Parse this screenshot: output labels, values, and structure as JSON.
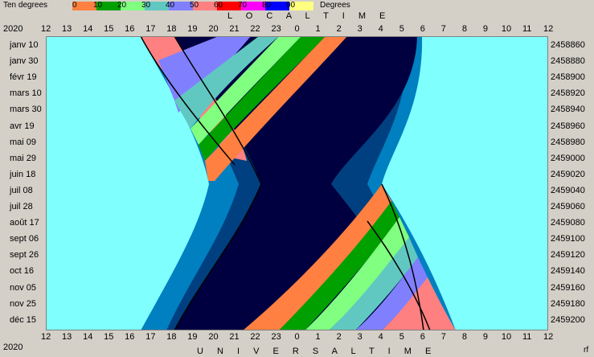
{
  "legend": {
    "left_label": "Ten degrees",
    "right_label": "Degrees",
    "items": [
      {
        "label": "0",
        "color": "#ff8040"
      },
      {
        "label": "10",
        "color": "#00a000"
      },
      {
        "label": "20",
        "color": "#80ff80"
      },
      {
        "label": "30",
        "color": "#60c8c0"
      },
      {
        "label": "40",
        "color": "#8080ff"
      },
      {
        "label": "50",
        "color": "#ff8080"
      },
      {
        "label": "60",
        "color": "#ff0000"
      },
      {
        "label": "70",
        "color": "#ff00ff"
      },
      {
        "label": "80",
        "color": "#0000ff"
      },
      {
        "label": "90",
        "color": "#ffff80"
      }
    ]
  },
  "header": {
    "year_top": "2020",
    "local_time_label": "L O C A L   T I M E"
  },
  "footer": {
    "year_bottom": "2020",
    "universal_time_label": "U N I V E R S A L   T I M E",
    "corner": "rf"
  },
  "chart_data": {
    "type": "heatmap",
    "title": "",
    "top_axis_label": "LOCAL TIME",
    "bottom_axis_label": "UNIVERSAL TIME",
    "top_ticks": [
      "12",
      "13",
      "14",
      "15",
      "16",
      "17",
      "18",
      "19",
      "20",
      "21",
      "22",
      "23",
      "0",
      "1",
      "2",
      "3",
      "4",
      "5",
      "6",
      "7",
      "8",
      "9",
      "10",
      "11",
      "12"
    ],
    "bottom_ticks": [
      "12",
      "13",
      "14",
      "15",
      "16",
      "17",
      "18",
      "19",
      "20",
      "21",
      "22",
      "23",
      "0",
      "1",
      "2",
      "3",
      "4",
      "5",
      "6",
      "7",
      "8",
      "9",
      "10",
      "11",
      "12"
    ],
    "left_ticks": [
      "janv 10",
      "janv 30",
      "févr 19",
      "mars 10",
      "mars 30",
      "avr 19",
      "mai 09",
      "mai 29",
      "juin 18",
      "juil 08",
      "juil 28",
      "août 17",
      "sept 06",
      "sept 26",
      "oct 16",
      "nov 05",
      "nov 25",
      "déc 15"
    ],
    "right_ticks": [
      "2458860",
      "2458880",
      "2458900",
      "2458920",
      "2458940",
      "2458960",
      "2458980",
      "2459000",
      "2459020",
      "2459040",
      "2459060",
      "2459080",
      "2459100",
      "2459120",
      "2459140",
      "2459160",
      "2459180",
      "2459200"
    ],
    "colors": {
      "day": "#80ffff",
      "twilight_civil": "#0080c0",
      "twilight_nautical": "#004080",
      "night": "#000040"
    }
  }
}
